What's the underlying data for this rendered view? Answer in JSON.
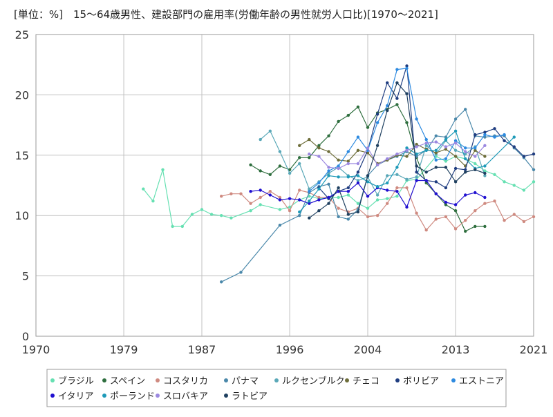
{
  "chart_data": {
    "type": "line",
    "title": "[単位：%]　15～64歳男性、建設部門の雇用率(労働年齢の男性就労人口比)[1970～2021]",
    "xlabel": "",
    "ylabel": "",
    "xlim": [
      1970,
      2021
    ],
    "ylim": [
      0,
      25
    ],
    "xticks": [
      "1970",
      "1979",
      "1987",
      "1996",
      "2004",
      "2013",
      "2021"
    ],
    "yticks": [
      "0",
      "5",
      "10",
      "15",
      "20",
      "25"
    ],
    "grid": true,
    "legend_position": "bottom",
    "series": [
      {
        "name": "ブラジル",
        "color": "#66e0b2",
        "points": [
          [
            1981,
            12.2
          ],
          [
            1982,
            11.2
          ],
          [
            1983,
            13.8
          ],
          [
            1984,
            9.1
          ],
          [
            1985,
            9.1
          ],
          [
            1986,
            10.1
          ],
          [
            1987,
            10.5
          ],
          [
            1988,
            10.1
          ],
          [
            1989,
            10.0
          ],
          [
            1990,
            9.8
          ],
          [
            1992,
            10.4
          ],
          [
            1993,
            10.9
          ],
          [
            1995,
            10.5
          ],
          [
            1996,
            10.7
          ],
          [
            1997,
            11.3
          ],
          [
            1998,
            11.6
          ],
          [
            1999,
            11.4
          ],
          [
            2001,
            11.5
          ],
          [
            2002,
            11.7
          ],
          [
            2003,
            11.0
          ],
          [
            2004,
            10.6
          ],
          [
            2005,
            11.3
          ],
          [
            2006,
            11.4
          ],
          [
            2007,
            11.6
          ],
          [
            2008,
            12.9
          ],
          [
            2009,
            13.0
          ],
          [
            2011,
            14.9
          ],
          [
            2012,
            14.5
          ],
          [
            2013,
            14.9
          ],
          [
            2014,
            14.7
          ],
          [
            2015,
            14.3
          ],
          [
            2016,
            13.7
          ],
          [
            2017,
            13.4
          ],
          [
            2018,
            12.8
          ],
          [
            2019,
            12.5
          ],
          [
            2020,
            12.1
          ],
          [
            2021,
            12.8
          ]
        ]
      },
      {
        "name": "スペイン",
        "color": "#2e6e3e",
        "points": [
          [
            1992,
            14.2
          ],
          [
            1993,
            13.7
          ],
          [
            1994,
            13.4
          ],
          [
            1995,
            14.1
          ],
          [
            1996,
            13.8
          ],
          [
            1997,
            14.8
          ],
          [
            1998,
            14.8
          ],
          [
            1999,
            15.8
          ],
          [
            2000,
            16.6
          ],
          [
            2001,
            17.8
          ],
          [
            2002,
            18.3
          ],
          [
            2003,
            19.0
          ],
          [
            2004,
            17.3
          ],
          [
            2005,
            18.5
          ],
          [
            2006,
            18.8
          ],
          [
            2007,
            19.2
          ],
          [
            2008,
            17.7
          ],
          [
            2009,
            14.8
          ],
          [
            2010,
            12.7
          ],
          [
            2011,
            11.8
          ],
          [
            2012,
            10.9
          ],
          [
            2013,
            10.4
          ],
          [
            2014,
            8.7
          ],
          [
            2015,
            9.1
          ],
          [
            2016,
            9.1
          ]
        ]
      },
      {
        "name": "コスタリカ",
        "color": "#cf8a80",
        "points": [
          [
            1989,
            11.6
          ],
          [
            1990,
            11.8
          ],
          [
            1991,
            11.8
          ],
          [
            1992,
            11.0
          ],
          [
            1993,
            11.5
          ],
          [
            1994,
            12.0
          ],
          [
            1995,
            11.5
          ],
          [
            1996,
            10.4
          ],
          [
            1997,
            12.1
          ],
          [
            1998,
            11.9
          ],
          [
            1999,
            11.5
          ],
          [
            2000,
            11.5
          ],
          [
            2001,
            10.6
          ],
          [
            2002,
            10.3
          ],
          [
            2003,
            10.6
          ],
          [
            2004,
            9.9
          ],
          [
            2005,
            10.0
          ],
          [
            2006,
            11.0
          ],
          [
            2007,
            12.3
          ],
          [
            2008,
            12.3
          ],
          [
            2009,
            10.2
          ],
          [
            2010,
            8.8
          ],
          [
            2011,
            9.7
          ],
          [
            2012,
            9.9
          ],
          [
            2013,
            8.9
          ],
          [
            2014,
            9.6
          ],
          [
            2015,
            10.4
          ],
          [
            2016,
            11.0
          ],
          [
            2017,
            11.2
          ],
          [
            2018,
            9.6
          ],
          [
            2019,
            10.1
          ],
          [
            2020,
            9.5
          ],
          [
            2021,
            9.9
          ]
        ]
      },
      {
        "name": "パナマ",
        "color": "#4a88aa",
        "points": [
          [
            1989,
            4.5
          ],
          [
            1991,
            5.3
          ],
          [
            1995,
            9.2
          ],
          [
            1997,
            10.0
          ],
          [
            1998,
            11.9
          ],
          [
            1999,
            12.4
          ],
          [
            2000,
            12.6
          ],
          [
            2001,
            9.9
          ],
          [
            2002,
            9.7
          ],
          [
            2003,
            10.5
          ],
          [
            2004,
            13.3
          ],
          [
            2005,
            14.2
          ],
          [
            2006,
            14.6
          ],
          [
            2007,
            14.9
          ],
          [
            2008,
            15.3
          ],
          [
            2009,
            14.9
          ],
          [
            2010,
            15.4
          ],
          [
            2011,
            16.6
          ],
          [
            2012,
            16.5
          ],
          [
            2013,
            18.0
          ],
          [
            2014,
            18.8
          ],
          [
            2015,
            16.6
          ],
          [
            2016,
            16.5
          ],
          [
            2017,
            16.6
          ],
          [
            2018,
            16.6
          ],
          [
            2019,
            15.6
          ],
          [
            2020,
            14.8
          ],
          [
            2021,
            13.8
          ]
        ]
      },
      {
        "name": "ルクセンブルク",
        "color": "#5aa8b8",
        "points": [
          [
            1993,
            16.3
          ],
          [
            1994,
            17.0
          ],
          [
            1995,
            15.3
          ],
          [
            1996,
            13.5
          ],
          [
            1997,
            14.3
          ],
          [
            1998,
            12.2
          ],
          [
            1999,
            12.8
          ],
          [
            2000,
            13.5
          ],
          [
            2001,
            14.0
          ],
          [
            2002,
            13.3
          ],
          [
            2003,
            12.9
          ],
          [
            2004,
            13.2
          ],
          [
            2005,
            11.7
          ],
          [
            2006,
            13.3
          ],
          [
            2007,
            13.4
          ],
          [
            2008,
            13.0
          ],
          [
            2009,
            13.2
          ],
          [
            2010,
            15.8
          ],
          [
            2011,
            15.1
          ],
          [
            2012,
            16.2
          ],
          [
            2013,
            15.4
          ],
          [
            2014,
            15.1
          ],
          [
            2015,
            15.7
          ],
          [
            2016,
            13.3
          ]
        ]
      },
      {
        "name": "チェコ",
        "color": "#6e6e3a",
        "points": [
          [
            1997,
            15.8
          ],
          [
            1998,
            16.3
          ],
          [
            1999,
            15.6
          ],
          [
            2000,
            15.3
          ],
          [
            2001,
            14.6
          ],
          [
            2002,
            14.5
          ],
          [
            2003,
            15.4
          ],
          [
            2004,
            15.2
          ],
          [
            2005,
            14.3
          ],
          [
            2006,
            14.6
          ],
          [
            2007,
            15.0
          ],
          [
            2008,
            14.9
          ],
          [
            2009,
            15.9
          ],
          [
            2010,
            15.5
          ],
          [
            2011,
            15.2
          ],
          [
            2012,
            15.5
          ],
          [
            2013,
            14.9
          ],
          [
            2014,
            14.1
          ],
          [
            2015,
            15.4
          ],
          [
            2016,
            14.9
          ]
        ]
      },
      {
        "name": "ボリビア",
        "color": "#1f3d80",
        "points": [
          [
            1999,
            12.3
          ],
          [
            2000,
            11.4
          ],
          [
            2001,
            12.0
          ],
          [
            2002,
            12.3
          ],
          [
            2003,
            13.6
          ],
          [
            2004,
            15.4
          ],
          [
            2005,
            18.4
          ],
          [
            2006,
            21.0
          ],
          [
            2007,
            19.7
          ],
          [
            2008,
            22.4
          ],
          [
            2009,
            13.6
          ],
          [
            2010,
            12.9
          ],
          [
            2011,
            12.8
          ],
          [
            2012,
            12.3
          ],
          [
            2013,
            13.9
          ],
          [
            2014,
            13.8
          ],
          [
            2015,
            16.7
          ],
          [
            2016,
            16.9
          ],
          [
            2017,
            17.2
          ],
          [
            2018,
            16.2
          ],
          [
            2019,
            15.7
          ],
          [
            2020,
            14.9
          ],
          [
            2021,
            15.1
          ]
        ]
      },
      {
        "name": "エストニア",
        "color": "#2d8ae0",
        "points": [
          [
            1998,
            12.0
          ],
          [
            1999,
            12.7
          ],
          [
            2000,
            13.7
          ],
          [
            2001,
            14.1
          ],
          [
            2002,
            15.3
          ],
          [
            2003,
            16.5
          ],
          [
            2004,
            15.4
          ],
          [
            2005,
            17.7
          ],
          [
            2006,
            19.1
          ],
          [
            2007,
            22.1
          ],
          [
            2008,
            22.2
          ],
          [
            2009,
            18.0
          ],
          [
            2010,
            16.3
          ],
          [
            2011,
            14.6
          ],
          [
            2012,
            14.7
          ],
          [
            2013,
            16.2
          ],
          [
            2014,
            15.6
          ],
          [
            2015,
            15.6
          ],
          [
            2016,
            16.7
          ],
          [
            2017,
            16.5
          ],
          [
            2018,
            16.7
          ]
        ]
      },
      {
        "name": "イタリア",
        "color": "#2010d0",
        "points": [
          [
            1992,
            12.0
          ],
          [
            1993,
            12.1
          ],
          [
            1994,
            11.7
          ],
          [
            1995,
            11.3
          ],
          [
            1996,
            11.4
          ],
          [
            1997,
            11.3
          ],
          [
            1998,
            11.0
          ],
          [
            1999,
            11.3
          ],
          [
            2000,
            11.5
          ],
          [
            2001,
            12.0
          ],
          [
            2002,
            12.0
          ],
          [
            2003,
            12.7
          ],
          [
            2004,
            11.6
          ],
          [
            2005,
            12.3
          ],
          [
            2006,
            12.1
          ],
          [
            2007,
            12.0
          ],
          [
            2008,
            10.7
          ],
          [
            2009,
            12.9
          ],
          [
            2010,
            12.9
          ],
          [
            2011,
            11.8
          ],
          [
            2012,
            11.1
          ],
          [
            2013,
            10.9
          ],
          [
            2014,
            11.7
          ],
          [
            2015,
            11.9
          ],
          [
            2016,
            11.5
          ]
        ]
      },
      {
        "name": "ポーランド",
        "color": "#1e9ab8",
        "points": [
          [
            1997,
            10.3
          ],
          [
            1998,
            11.2
          ],
          [
            1999,
            12.2
          ],
          [
            2000,
            13.3
          ],
          [
            2001,
            13.2
          ],
          [
            2002,
            13.2
          ],
          [
            2003,
            13.3
          ],
          [
            2004,
            12.8
          ],
          [
            2005,
            12.4
          ],
          [
            2006,
            12.7
          ],
          [
            2007,
            14.0
          ],
          [
            2008,
            15.6
          ],
          [
            2009,
            15.1
          ],
          [
            2010,
            15.4
          ],
          [
            2011,
            15.4
          ],
          [
            2012,
            16.3
          ],
          [
            2013,
            17.0
          ],
          [
            2014,
            14.7
          ],
          [
            2015,
            13.9
          ],
          [
            2016,
            14.1
          ],
          [
            2019,
            16.5
          ]
        ]
      },
      {
        "name": "スロバキア",
        "color": "#9b88e0",
        "points": [
          [
            1998,
            15.1
          ],
          [
            1999,
            14.9
          ],
          [
            2000,
            14.0
          ],
          [
            2001,
            13.9
          ],
          [
            2002,
            14.3
          ],
          [
            2003,
            14.3
          ],
          [
            2004,
            15.6
          ],
          [
            2005,
            14.2
          ],
          [
            2006,
            14.7
          ],
          [
            2007,
            15.1
          ],
          [
            2008,
            15.4
          ],
          [
            2009,
            15.7
          ],
          [
            2010,
            16.0
          ],
          [
            2011,
            16.1
          ],
          [
            2012,
            15.7
          ],
          [
            2013,
            16.0
          ],
          [
            2014,
            15.3
          ],
          [
            2015,
            14.9
          ],
          [
            2016,
            15.8
          ]
        ]
      },
      {
        "name": "ラトビア",
        "color": "#1f4060",
        "points": [
          [
            1998,
            9.8
          ],
          [
            1999,
            10.4
          ],
          [
            2000,
            11.0
          ],
          [
            2001,
            12.3
          ],
          [
            2002,
            10.1
          ],
          [
            2003,
            10.3
          ],
          [
            2004,
            13.3
          ],
          [
            2005,
            15.8
          ],
          [
            2006,
            18.7
          ],
          [
            2007,
            21.0
          ],
          [
            2008,
            20.1
          ],
          [
            2009,
            14.1
          ],
          [
            2010,
            13.6
          ],
          [
            2011,
            14.0
          ],
          [
            2012,
            14.0
          ],
          [
            2013,
            12.8
          ],
          [
            2014,
            13.6
          ],
          [
            2015,
            13.8
          ],
          [
            2016,
            13.5
          ]
        ]
      }
    ]
  }
}
